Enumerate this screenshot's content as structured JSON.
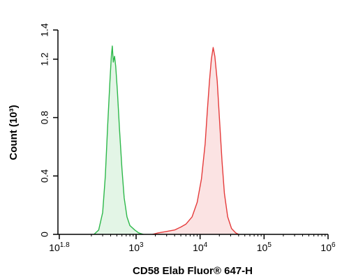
{
  "chart_data": {
    "type": "area",
    "xlabel": "CD58 Elab Fluor® 647-H",
    "ylabel": "Count (10³)",
    "x_scale": "log",
    "xlim": [
      60,
      1000000
    ],
    "ylim": [
      0,
      1.4
    ],
    "x_ticks": [
      {
        "value": 63,
        "base": "10",
        "exp": "1.8"
      },
      {
        "value": 1000,
        "base": "10",
        "exp": "3"
      },
      {
        "value": 10000,
        "base": "10",
        "exp": "4"
      },
      {
        "value": 100000,
        "base": "10",
        "exp": "5"
      },
      {
        "value": 1000000,
        "base": "10",
        "exp": "6"
      }
    ],
    "y_ticks": [
      "0",
      "0.4",
      "0.8",
      "1.2",
      "1.4"
    ],
    "y_tick_values": [
      0,
      0.4,
      0.8,
      1.2,
      1.4
    ],
    "grid": false,
    "legend": "none",
    "series": [
      {
        "color": "#2db84a",
        "fill": "#e3f5e6",
        "points": [
          [
            220,
            0
          ],
          [
            260,
            0.03
          ],
          [
            300,
            0.15
          ],
          [
            330,
            0.4
          ],
          [
            360,
            0.75
          ],
          [
            390,
            1.05
          ],
          [
            410,
            1.22
          ],
          [
            425,
            1.29
          ],
          [
            440,
            1.18
          ],
          [
            460,
            1.22
          ],
          [
            480,
            1.15
          ],
          [
            510,
            0.98
          ],
          [
            550,
            0.72
          ],
          [
            600,
            0.45
          ],
          [
            650,
            0.25
          ],
          [
            720,
            0.12
          ],
          [
            800,
            0.06
          ],
          [
            950,
            0.03
          ],
          [
            1100,
            0.01
          ],
          [
            1300,
            0
          ]
        ]
      },
      {
        "color": "#e53b3b",
        "fill": "#fbe3e3",
        "points": [
          [
            1800,
            0
          ],
          [
            2200,
            0.01
          ],
          [
            3000,
            0.02
          ],
          [
            4000,
            0.03
          ],
          [
            5000,
            0.05
          ],
          [
            6000,
            0.07
          ],
          [
            7500,
            0.12
          ],
          [
            9000,
            0.22
          ],
          [
            10500,
            0.38
          ],
          [
            12000,
            0.62
          ],
          [
            13000,
            0.85
          ],
          [
            14000,
            1.05
          ],
          [
            15000,
            1.2
          ],
          [
            16000,
            1.28
          ],
          [
            17000,
            1.22
          ],
          [
            18500,
            1.05
          ],
          [
            20000,
            0.8
          ],
          [
            22000,
            0.5
          ],
          [
            24000,
            0.28
          ],
          [
            27000,
            0.12
          ],
          [
            31000,
            0.04
          ],
          [
            36000,
            0.01
          ],
          [
            40000,
            0
          ]
        ]
      }
    ]
  }
}
